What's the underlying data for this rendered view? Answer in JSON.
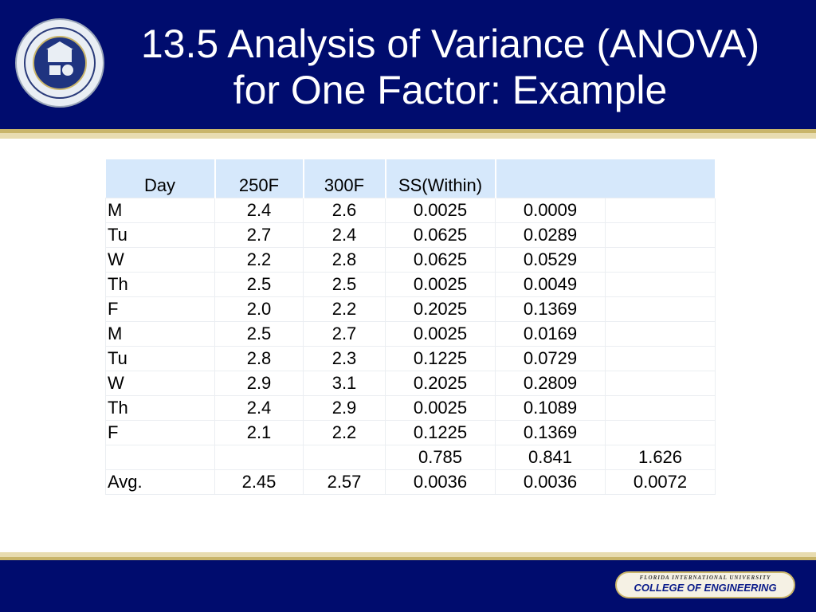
{
  "slide": {
    "title_line1": "13.5 Analysis of Variance (ANOVA)",
    "title_line2": "for One Factor: Example"
  },
  "table": {
    "headers": [
      "Day",
      "250F",
      "300F",
      "SS(Within)",
      "",
      ""
    ],
    "rows": [
      [
        "M",
        "2.4",
        "2.6",
        "0.0025",
        "0.0009",
        ""
      ],
      [
        "Tu",
        "2.7",
        "2.4",
        "0.0625",
        "0.0289",
        ""
      ],
      [
        "W",
        "2.2",
        "2.8",
        "0.0625",
        "0.0529",
        ""
      ],
      [
        "Th",
        "2.5",
        "2.5",
        "0.0025",
        "0.0049",
        ""
      ],
      [
        "F",
        "2.0",
        "2.2",
        "0.2025",
        "0.1369",
        ""
      ],
      [
        "M",
        "2.5",
        "2.7",
        "0.0025",
        "0.0169",
        ""
      ],
      [
        "Tu",
        "2.8",
        "2.3",
        "0.1225",
        "0.0729",
        ""
      ],
      [
        "W",
        "2.9",
        "3.1",
        "0.2025",
        "0.2809",
        ""
      ],
      [
        "Th",
        "2.4",
        "2.9",
        "0.0025",
        "0.1089",
        ""
      ],
      [
        "F",
        "2.1",
        "2.2",
        "0.1225",
        "0.1369",
        ""
      ],
      [
        "",
        "",
        "",
        "0.785",
        "0.841",
        "1.626"
      ],
      [
        "Avg.",
        "2.45",
        "2.57",
        "0.0036",
        "0.0036",
        "0.0072"
      ]
    ]
  },
  "footer": {
    "university": "FLORIDA INTERNATIONAL UNIVERSITY",
    "college": "COLLEGE OF ENGINEERING"
  },
  "colors": {
    "header_bg": "#000c6e",
    "gold": "#c9b56a",
    "table_header_bg": "#d6e8fb"
  }
}
